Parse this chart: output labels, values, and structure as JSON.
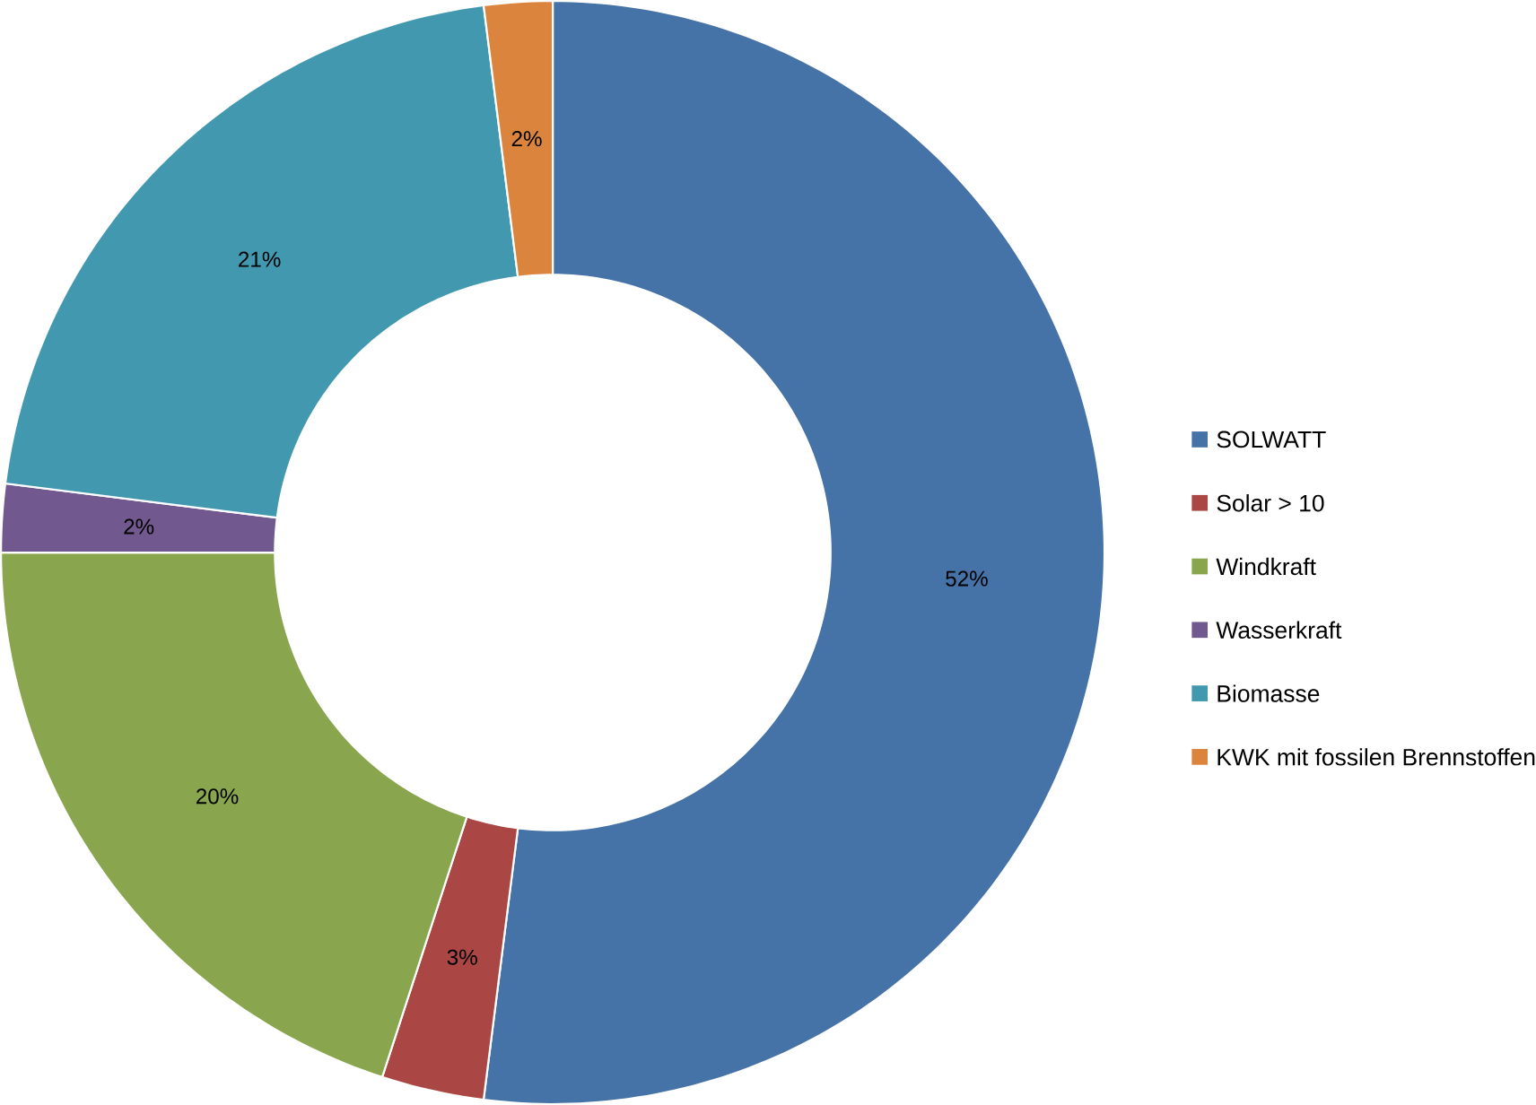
{
  "chart_data": {
    "type": "donut",
    "categories": [
      "SOLWATT",
      "Solar > 10",
      "Windkraft",
      "Wasserkraft",
      "Biomasse",
      "KWK mit fossilen Brennstoffen"
    ],
    "values": [
      52,
      3,
      20,
      2,
      21,
      2
    ],
    "colors": [
      "#4572a7",
      "#aa4643",
      "#89a54e",
      "#71588f",
      "#4198af",
      "#db843d"
    ],
    "value_labels": [
      "52%",
      "3%",
      "20%",
      "2%",
      "21%",
      "2%"
    ],
    "legend": "right"
  }
}
